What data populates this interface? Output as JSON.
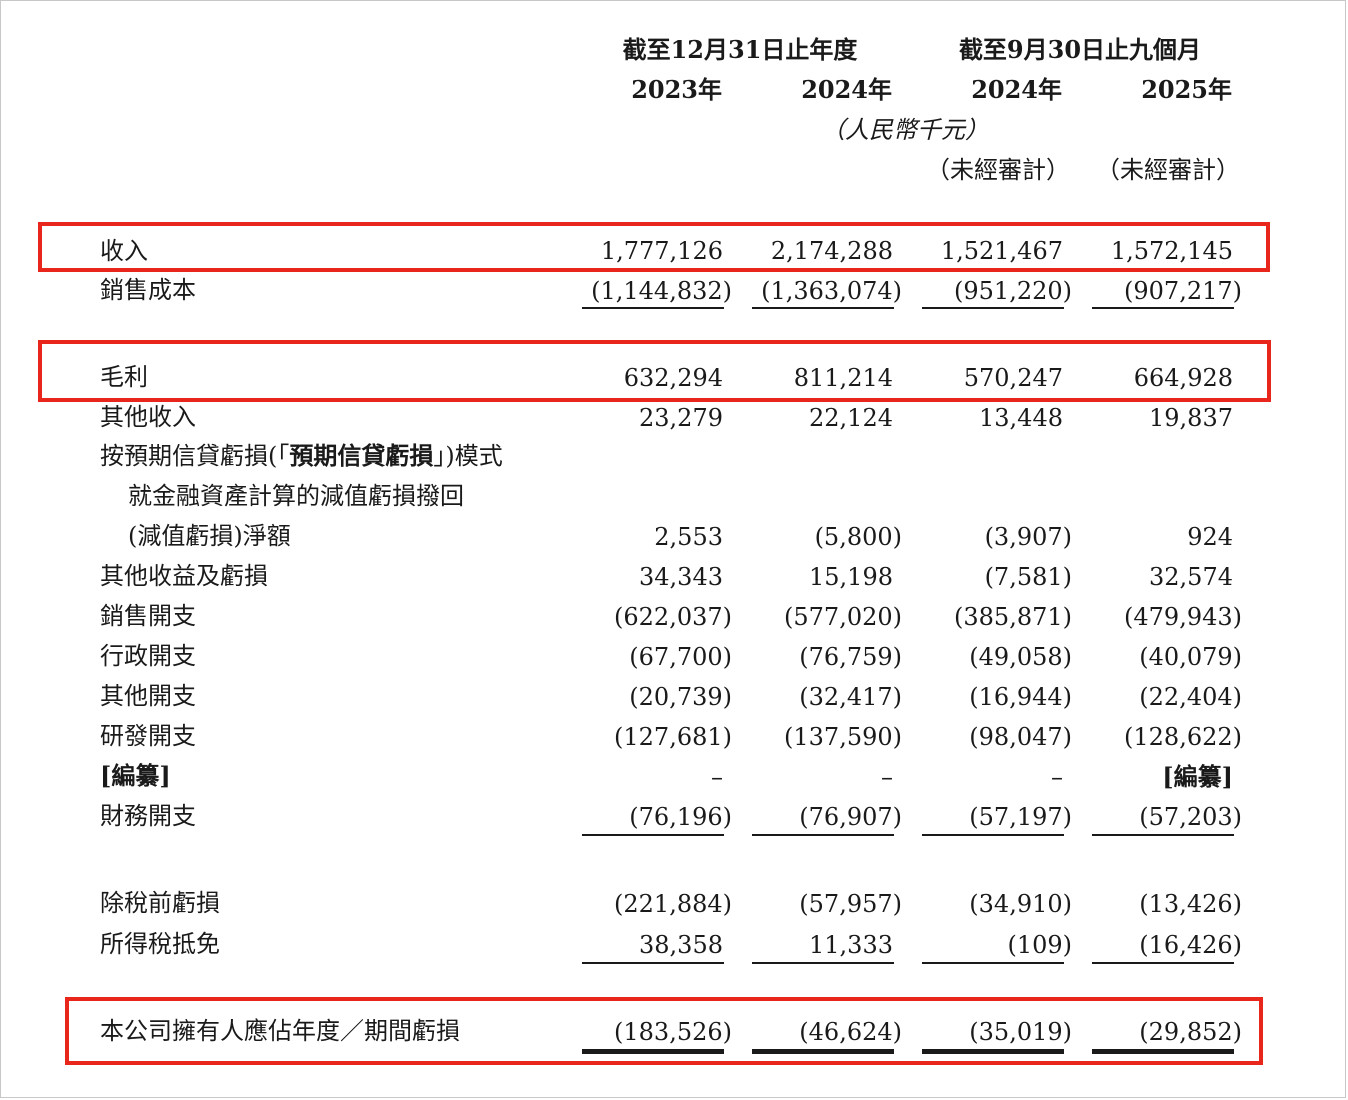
{
  "header": {
    "group_year": "截至12月31日止年度",
    "group_nine": "截至9月30日止九個月",
    "columns": [
      "2023年",
      "2024年",
      "2024年",
      "2025年"
    ],
    "currency": "（人民幣千元）",
    "unaudited": [
      "（未經審計）",
      "（未經審計）"
    ]
  },
  "rows": {
    "revenue": {
      "label": "收入",
      "values": [
        "1,777,126",
        "2,174,288",
        "1,521,467",
        "1,572,145"
      ]
    },
    "cost_of_sales": {
      "label": "銷售成本",
      "values": [
        "(1,144,832)",
        "(1,363,074)",
        "(951,220)",
        "(907,217)"
      ]
    },
    "gross_profit": {
      "label": "毛利",
      "values": [
        "632,294",
        "811,214",
        "570,247",
        "664,928"
      ]
    },
    "other_income": {
      "label": "其他收入",
      "values": [
        "23,279",
        "22,124",
        "13,448",
        "19,837"
      ]
    },
    "ecl": {
      "label_line1_a": "按預期信貸虧損(「",
      "label_line1_b": "預期信貸虧損",
      "label_line1_c": "」)模式",
      "label_line2": "就金融資產計算的減值虧損撥回",
      "label_line3": "(減值虧損)淨額",
      "values": [
        "2,553",
        "(5,800)",
        "(3,907)",
        "924"
      ]
    },
    "other_gains": {
      "label": "其他收益及虧損",
      "values": [
        "34,343",
        "15,198",
        "(7,581)",
        "32,574"
      ]
    },
    "selling": {
      "label": "銷售開支",
      "values": [
        "(622,037)",
        "(577,020)",
        "(385,871)",
        "(479,943)"
      ]
    },
    "admin": {
      "label": "行政開支",
      "values": [
        "(67,700)",
        "(76,759)",
        "(49,058)",
        "(40,079)"
      ]
    },
    "other_exp": {
      "label": "其他開支",
      "values": [
        "(20,739)",
        "(32,417)",
        "(16,944)",
        "(22,404)"
      ]
    },
    "rnd": {
      "label": "研發開支",
      "values": [
        "(127,681)",
        "(137,590)",
        "(98,047)",
        "(128,622)"
      ]
    },
    "redacted": {
      "label": "[編纂]",
      "values": [
        "–",
        "–",
        "–",
        "[編纂]"
      ]
    },
    "finance": {
      "label": "財務開支",
      "values": [
        "(76,196)",
        "(76,907)",
        "(57,197)",
        "(57,203)"
      ]
    },
    "pretax_loss": {
      "label": "除稅前虧損",
      "values": [
        "(221,884)",
        "(57,957)",
        "(34,910)",
        "(13,426)"
      ]
    },
    "tax_credit": {
      "label": "所得稅抵免",
      "values": [
        "38,358",
        "11,333",
        "(109)",
        "(16,426)"
      ]
    },
    "net_loss": {
      "label": "本公司擁有人應佔年度／期間虧損",
      "values": [
        "(183,526)",
        "(46,624)",
        "(35,019)",
        "(29,852)"
      ]
    }
  },
  "highlight_color": "#e8261c"
}
